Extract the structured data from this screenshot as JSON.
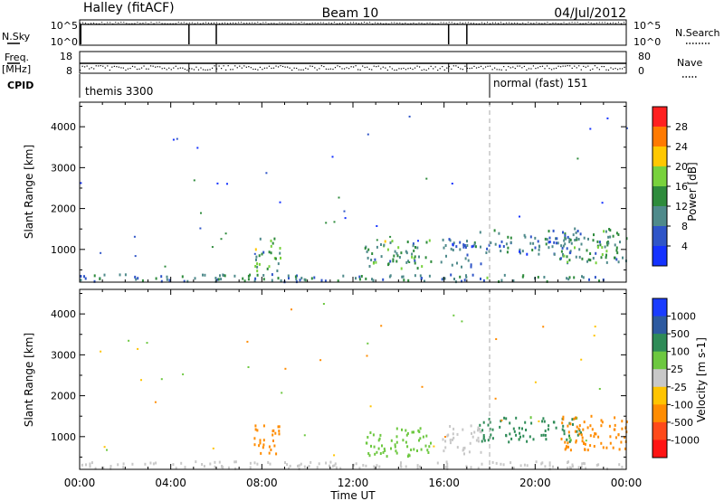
{
  "header": {
    "station": "Halley (fitACF)",
    "beam": "Beam 10",
    "date": "04/Jul/2012"
  },
  "time_panels": {
    "nsky_label": "N.Sky",
    "nsearch_label": "N.Search",
    "freq_label_top": "Freq.",
    "freq_label_bottom": "[MHz]",
    "nave_label": "Nave",
    "cpid_label": "CPID",
    "nsky_ticks_left": [
      "10^5",
      "10^0"
    ],
    "nsky_ticks_right": [
      "10^5",
      "10^0"
    ],
    "freq_ticks_left": [
      "18",
      "8"
    ],
    "nave_ticks_right": [
      "80",
      "0"
    ],
    "cpid_segments": [
      {
        "start": 0.0,
        "end": 18.0,
        "label": "themis 3300"
      },
      {
        "start": 18.0,
        "end": 24.0,
        "label": "normal (fast) 151"
      }
    ],
    "noise_drop_times": [
      4.8,
      6.0,
      16.2,
      17.0
    ]
  },
  "chart_data": [
    {
      "type": "heatmap",
      "title": "Power",
      "xlabel": "",
      "ylabel": "Slant Range [km]",
      "xlim": [
        0,
        24
      ],
      "ylim": [
        200,
        4600
      ],
      "x_ticks": [
        "00:00",
        "04:00",
        "08:00",
        "12:00",
        "16:00",
        "20:00",
        "00:00"
      ],
      "y_ticks": [
        1000,
        2000,
        3000,
        4000
      ],
      "colorbar": {
        "label": "Power [dB]",
        "ticks": [
          "28",
          "24",
          "20",
          "16",
          "12",
          "8",
          "4"
        ],
        "colors": [
          "#ff2020",
          "#ff7a00",
          "#ffc800",
          "#78d23c",
          "#2e8b3c",
          "#4f8a8b",
          "#2f55c8",
          "#1432ff"
        ]
      },
      "regions": [
        {
          "t0": 0.0,
          "t1": 24.0,
          "r0": 240,
          "r1": 420,
          "value": 10
        },
        {
          "t0": 7.6,
          "t1": 8.8,
          "r0": 500,
          "r1": 1300,
          "value": 14
        },
        {
          "t0": 12.5,
          "t1": 15.4,
          "r0": 550,
          "r1": 1250,
          "value": 13
        },
        {
          "t0": 15.8,
          "t1": 17.6,
          "r0": 600,
          "r1": 1300,
          "value": 8
        },
        {
          "t0": 17.5,
          "t1": 22.0,
          "r0": 900,
          "r1": 1500,
          "value": 9
        },
        {
          "t0": 21.0,
          "t1": 24.0,
          "r0": 700,
          "r1": 1550,
          "value": 12
        }
      ],
      "cpid_change_time": 18.0
    },
    {
      "type": "heatmap",
      "title": "Velocity",
      "xlabel": "Time UT",
      "ylabel": "Slant Range [km]",
      "xlim": [
        0,
        24
      ],
      "ylim": [
        200,
        4600
      ],
      "x_ticks": [
        "00:00",
        "04:00",
        "08:00",
        "12:00",
        "16:00",
        "20:00",
        "00:00"
      ],
      "y_ticks": [
        1000,
        2000,
        3000,
        4000
      ],
      "colorbar": {
        "label": "Velocity [m s-1]",
        "ticks": [
          "1000",
          "500",
          "100",
          "25",
          "-25",
          "-100",
          "-500",
          "-1000"
        ],
        "colors": [
          "#1a3cff",
          "#2d5aa0",
          "#2e8b57",
          "#6dc840",
          "#c8c8c8",
          "#ffc400",
          "#ff8c00",
          "#ff4a1a",
          "#ff1414"
        ]
      },
      "regions": [
        {
          "t0": 0.0,
          "t1": 24.0,
          "r0": 240,
          "r1": 420,
          "value": 0
        },
        {
          "t0": 7.6,
          "t1": 8.8,
          "r0": 500,
          "r1": 1300,
          "value": -300
        },
        {
          "t0": 12.5,
          "t1": 15.4,
          "r0": 550,
          "r1": 1250,
          "value": 60
        },
        {
          "t0": 15.8,
          "t1": 17.6,
          "r0": 600,
          "r1": 1300,
          "value": 0
        },
        {
          "t0": 17.5,
          "t1": 22.0,
          "r0": 900,
          "r1": 1500,
          "value": 150
        },
        {
          "t0": 21.0,
          "t1": 24.0,
          "r0": 700,
          "r1": 1550,
          "value": -200
        }
      ],
      "cpid_change_time": 18.0
    }
  ]
}
